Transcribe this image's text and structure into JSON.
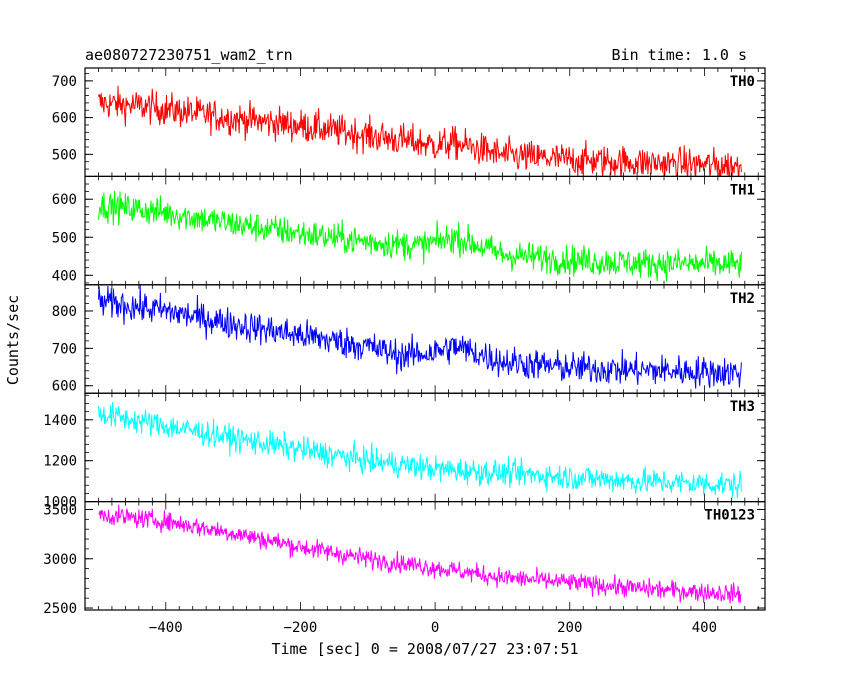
{
  "chart_data": {
    "type": "line",
    "title": "ae080727230751_wam2_trn",
    "bin_time": "Bin time: 1.0 s",
    "xlabel": "Time [sec] 0 = 2008/07/27 23:07:51",
    "ylabel": "Counts/sec",
    "xlim": [
      -520,
      490
    ],
    "x_range": [
      -500,
      455
    ],
    "xticks": [
      -400,
      -200,
      0,
      200,
      400
    ],
    "xtick_labels": [
      "−400",
      "−200",
      "0",
      "200",
      "400"
    ],
    "panels": [
      {
        "name": "TH0",
        "color": "#ff0000",
        "ylim": [
          440,
          735
        ],
        "yticks": [
          500,
          600,
          700
        ],
        "ytick_labels": [
          "500",
          "600",
          "700"
        ],
        "trend": [
          [
            -500,
            640
          ],
          [
            -430,
            630
          ],
          [
            -300,
            598
          ],
          [
            -200,
            578
          ],
          [
            -100,
            552
          ],
          [
            0,
            525
          ],
          [
            30,
            530
          ],
          [
            100,
            498
          ],
          [
            200,
            485
          ],
          [
            300,
            478
          ],
          [
            455,
            468
          ]
        ],
        "noise": 32
      },
      {
        "name": "TH1",
        "color": "#00ff00",
        "ylim": [
          375,
          660
        ],
        "yticks": [
          400,
          500,
          600
        ],
        "ytick_labels": [
          "400",
          "500",
          "600"
        ],
        "trend": [
          [
            -500,
            585
          ],
          [
            -400,
            565
          ],
          [
            -300,
            535
          ],
          [
            -200,
            510
          ],
          [
            -100,
            488
          ],
          [
            -20,
            478
          ],
          [
            30,
            500
          ],
          [
            100,
            455
          ],
          [
            200,
            440
          ],
          [
            300,
            432
          ],
          [
            455,
            428
          ]
        ],
        "noise": 28
      },
      {
        "name": "TH2",
        "color": "#0000ff",
        "ylim": [
          580,
          870
        ],
        "yticks": [
          600,
          700,
          800
        ],
        "ytick_labels": [
          "600",
          "700",
          "800"
        ],
        "trend": [
          [
            -500,
            825
          ],
          [
            -400,
            800
          ],
          [
            -300,
            765
          ],
          [
            -200,
            735
          ],
          [
            -100,
            705
          ],
          [
            -50,
            680
          ],
          [
            0,
            690
          ],
          [
            30,
            705
          ],
          [
            100,
            665
          ],
          [
            200,
            648
          ],
          [
            300,
            642
          ],
          [
            455,
            635
          ]
        ],
        "noise": 30
      },
      {
        "name": "TH3",
        "color": "#00ffff",
        "ylim": [
          1000,
          1530
        ],
        "yticks": [
          1000,
          1200,
          1400
        ],
        "ytick_labels": [
          "1000",
          "1200",
          "1400"
        ],
        "trend": [
          [
            -500,
            1430
          ],
          [
            -400,
            1370
          ],
          [
            -300,
            1310
          ],
          [
            -200,
            1255
          ],
          [
            -100,
            1200
          ],
          [
            0,
            1160
          ],
          [
            100,
            1140
          ],
          [
            200,
            1120
          ],
          [
            300,
            1100
          ],
          [
            455,
            1080
          ]
        ],
        "noise": 45
      },
      {
        "name": "TH0123",
        "color": "#ff00ff",
        "ylim": [
          2480,
          3580
        ],
        "yticks": [
          2500,
          3000,
          3500
        ],
        "ytick_labels": [
          "2500",
          "3000",
          "3500"
        ],
        "trend": [
          [
            -500,
            3450
          ],
          [
            -400,
            3380
          ],
          [
            -300,
            3260
          ],
          [
            -200,
            3120
          ],
          [
            -100,
            3000
          ],
          [
            0,
            2910
          ],
          [
            100,
            2810
          ],
          [
            200,
            2760
          ],
          [
            300,
            2700
          ],
          [
            455,
            2640
          ]
        ],
        "noise": 70
      }
    ]
  }
}
